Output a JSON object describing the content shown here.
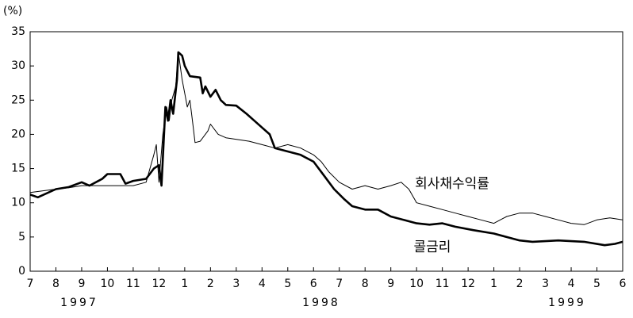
{
  "chart_data": {
    "type": "line",
    "y_label": "(%)",
    "xlim": [
      0,
      23
    ],
    "xticks": [
      {
        "value": 0,
        "label": "7"
      },
      {
        "value": 1,
        "label": "8"
      },
      {
        "value": 2,
        "label": "9"
      },
      {
        "value": 3,
        "label": "10"
      },
      {
        "value": 4,
        "label": "11"
      },
      {
        "value": 5,
        "label": "12"
      },
      {
        "value": 6,
        "label": "1"
      },
      {
        "value": 7,
        "label": "2"
      },
      {
        "value": 8,
        "label": "3"
      },
      {
        "value": 9,
        "label": "4"
      },
      {
        "value": 10,
        "label": "5"
      },
      {
        "value": 11,
        "label": "6"
      },
      {
        "value": 12,
        "label": "7"
      },
      {
        "value": 13,
        "label": "8"
      },
      {
        "value": 14,
        "label": "9"
      },
      {
        "value": 15,
        "label": "10"
      },
      {
        "value": 16,
        "label": "11"
      },
      {
        "value": 17,
        "label": "12"
      },
      {
        "value": 18,
        "label": "1"
      },
      {
        "value": 19,
        "label": "2"
      },
      {
        "value": 20,
        "label": "3"
      },
      {
        "value": 21,
        "label": "4"
      },
      {
        "value": 22,
        "label": "5"
      },
      {
        "value": 23,
        "label": "6"
      }
    ],
    "years": [
      "1997",
      "1998",
      "1999"
    ],
    "ylim": [
      0,
      35
    ],
    "yticks": [
      0,
      5,
      10,
      15,
      20,
      25,
      30,
      35
    ],
    "series": [
      {
        "name": "회사채수익률",
        "color": "#000000",
        "x": [
          0,
          1,
          1.5,
          2,
          3,
          4,
          4.5,
          4.8,
          4.9,
          5.0,
          5.15,
          5.3,
          5.4,
          5.5,
          5.65,
          5.75,
          5.9,
          6.0,
          6.1,
          6.2,
          6.3,
          6.4,
          6.6,
          6.9,
          7.0,
          7.3,
          7.6,
          8.5,
          9.0,
          9.5,
          10,
          10.5,
          11,
          11.3,
          11.6,
          12,
          12.5,
          13,
          13.5,
          14,
          14.4,
          14.7,
          15,
          15.5,
          16,
          16.5,
          17,
          17.5,
          18,
          18.5,
          19,
          19.5,
          20,
          20.5,
          21,
          21.5,
          22,
          22.5,
          23
        ],
        "values": [
          11.5,
          12,
          12.2,
          12.5,
          12.5,
          12.5,
          13,
          17,
          18.5,
          13,
          20,
          24,
          22,
          25,
          27,
          32,
          28,
          26,
          24,
          25,
          22,
          18.8,
          19,
          20.5,
          21.5,
          20,
          19.5,
          19,
          18.5,
          18,
          18.5,
          18,
          17,
          16,
          14.5,
          13,
          12,
          12.5,
          12,
          12.5,
          13,
          12,
          10,
          9.5,
          9,
          8.5,
          8,
          7.5,
          7,
          8,
          8.5,
          8.5,
          8,
          7.5,
          7,
          6.8,
          7.5,
          7.8,
          7.5
        ]
      },
      {
        "name": "콜금리",
        "color": "#000000",
        "x": [
          0,
          0.3,
          1.0,
          1.5,
          2,
          2.3,
          2.8,
          3.0,
          3.5,
          3.7,
          4.0,
          4.5,
          4.8,
          5.0,
          5.1,
          5.25,
          5.35,
          5.45,
          5.55,
          5.7,
          5.75,
          5.9,
          6.0,
          6.2,
          6.6,
          6.7,
          6.8,
          7.0,
          7.2,
          7.4,
          7.6,
          8.0,
          8.4,
          8.7,
          9.0,
          9.3,
          9.5,
          10,
          10.5,
          11,
          11.4,
          11.8,
          12.2,
          12.5,
          13,
          13.5,
          14,
          14.5,
          15,
          15.5,
          16,
          16.5,
          17.2,
          18,
          18.5,
          19,
          19.5,
          20.5,
          21.5,
          22.3,
          22.7,
          23
        ],
        "values": [
          11.2,
          10.8,
          12,
          12.3,
          13,
          12.5,
          13.5,
          14.2,
          14.2,
          12.8,
          13.2,
          13.5,
          15,
          15.5,
          12.5,
          24,
          22,
          25,
          23,
          28,
          32,
          31.5,
          30,
          28.5,
          28.3,
          26,
          27,
          25.5,
          26.5,
          25,
          24.3,
          24.2,
          23,
          22,
          21,
          20,
          18,
          17.5,
          17,
          16,
          14,
          12,
          10.5,
          9.5,
          9,
          9,
          8,
          7.5,
          7,
          6.8,
          7,
          6.5,
          6,
          5.5,
          5,
          4.5,
          4.3,
          4.5,
          4.3,
          3.8,
          4,
          4.3
        ]
      }
    ]
  }
}
